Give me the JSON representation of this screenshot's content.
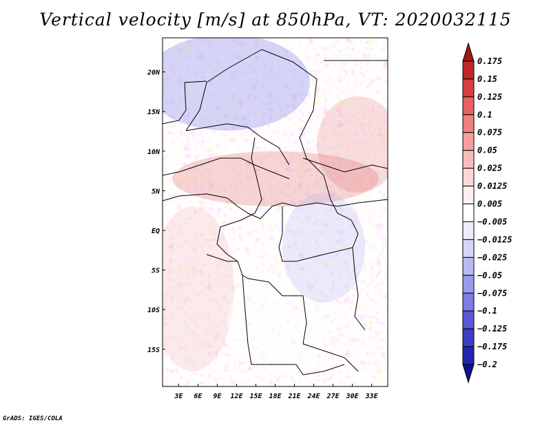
{
  "chart_data": {
    "type": "heatmap",
    "title": "Vertical velocity [m/s] at 850hPa, VT: 2020032115",
    "x_tick_labels": [
      "3E",
      "6E",
      "9E",
      "12E",
      "15E",
      "18E",
      "21E",
      "24E",
      "27E",
      "30E",
      "33E"
    ],
    "x_ticks": [
      3,
      6,
      9,
      12,
      15,
      18,
      21,
      24,
      27,
      30,
      33
    ],
    "y_tick_labels": [
      "20N",
      "15N",
      "10N",
      "5N",
      "EQ",
      "5S",
      "10S",
      "15S"
    ],
    "y_ticks": [
      20,
      15,
      10,
      5,
      0,
      -5,
      -10,
      -15
    ],
    "xlim": [
      0.5,
      35.5
    ],
    "ylim": [
      -19.7,
      24.3
    ],
    "colorbar": {
      "levels": [
        0.175,
        0.15,
        0.125,
        0.1,
        0.075,
        0.05,
        0.025,
        0.0125,
        0.005,
        -0.005,
        -0.0125,
        -0.025,
        -0.05,
        -0.075,
        -0.1,
        -0.125,
        -0.175,
        -0.2
      ],
      "labels": [
        "0.175",
        "0.15",
        "0.125",
        "0.1",
        "0.075",
        "0.05",
        "0.025",
        "0.0125",
        "0.005",
        "−0.005",
        "−0.0125",
        "−0.025",
        "−0.05",
        "−0.075",
        "−0.1",
        "−0.125",
        "−0.175",
        "−0.2"
      ],
      "colors": [
        "#a01818",
        "#c02828",
        "#d84040",
        "#e86060",
        "#f08080",
        "#f4a0a0",
        "#f8bcbc",
        "#fad8d8",
        "#fdf0f0",
        "#ffffff",
        "#ececfc",
        "#d6d6f8",
        "#babaf2",
        "#9a9aec",
        "#7c7ce4",
        "#5a5ad8",
        "#3c3cc4",
        "#2424b0",
        "#101090"
      ]
    }
  },
  "footer": "GrADS: IGES/COLA"
}
